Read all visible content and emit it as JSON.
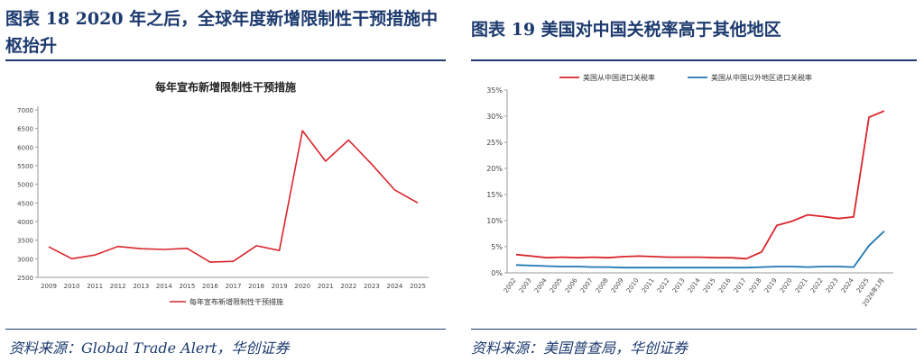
{
  "left": {
    "figure_title": "图表 18   2020 年之后，全球年度新增限制性干预措施中枢抬升",
    "source": "资料来源：Global Trade Alert，华创证券",
    "colors": {
      "line": "#d9252b",
      "axis": "#999999",
      "heading": "#1c3a6e"
    }
  },
  "right": {
    "figure_title": "图表 19   美国对中国关税率高于其他地区",
    "source": "资料来源：美国普查局，华创证券",
    "colors": {
      "china": "#d9252b",
      "others": "#1f78b4",
      "axis": "#999999",
      "heading": "#1c3a6e"
    }
  },
  "chart_data": [
    {
      "type": "line",
      "title": "每年宣布新增限制性干预措施",
      "xlabel": "",
      "ylabel": "",
      "x": [
        "2009",
        "2010",
        "2011",
        "2012",
        "2013",
        "2014",
        "2015",
        "2016",
        "2017",
        "2018",
        "2019",
        "2020",
        "2021",
        "2022",
        "2023",
        "2024",
        "2025"
      ],
      "series": [
        {
          "name": "每年宣布新增限制性干预措施",
          "values": [
            3320,
            3000,
            3100,
            3330,
            3270,
            3250,
            3280,
            2910,
            2930,
            3350,
            3220,
            6440,
            5620,
            6190,
            5540,
            4850,
            4500
          ]
        }
      ],
      "ylim": [
        2500,
        7000
      ],
      "yticks": [
        2500,
        3000,
        3500,
        4000,
        4500,
        5000,
        5500,
        6000,
        6500,
        7000
      ],
      "legend": "bottom",
      "grid": false
    },
    {
      "type": "line",
      "title": "",
      "xlabel": "",
      "ylabel": "",
      "x": [
        "2002",
        "2003",
        "2004",
        "2005",
        "2006",
        "2007",
        "2008",
        "2009",
        "2010",
        "2011",
        "2012",
        "2013",
        "2014",
        "2015",
        "2016",
        "2017",
        "2018",
        "2019",
        "2020",
        "2021",
        "2022",
        "2023",
        "2024",
        "2025",
        "2026年1月"
      ],
      "series": [
        {
          "name": "美国从中国进口关税率",
          "values": [
            3.5,
            3.2,
            2.9,
            3.0,
            2.9,
            3.0,
            2.9,
            3.1,
            3.2,
            3.1,
            3.0,
            3.0,
            3.0,
            2.9,
            2.9,
            2.7,
            4.0,
            9.1,
            9.9,
            11.1,
            10.8,
            10.4,
            10.7,
            29.8,
            31.0
          ]
        },
        {
          "name": "美国从中国以外地区进口关税率",
          "values": [
            1.5,
            1.4,
            1.3,
            1.2,
            1.2,
            1.1,
            1.1,
            1.0,
            1.0,
            1.0,
            1.0,
            1.0,
            1.0,
            1.0,
            1.0,
            1.0,
            1.1,
            1.2,
            1.2,
            1.1,
            1.2,
            1.2,
            1.1,
            5.2,
            8.0
          ]
        }
      ],
      "ylim": [
        0,
        35
      ],
      "yticks": [
        0,
        5,
        10,
        15,
        20,
        25,
        30,
        35
      ],
      "ytick_labels": [
        "0%",
        "5%",
        "10%",
        "15%",
        "20%",
        "25%",
        "30%",
        "35%"
      ],
      "legend": "top",
      "grid": false
    }
  ]
}
